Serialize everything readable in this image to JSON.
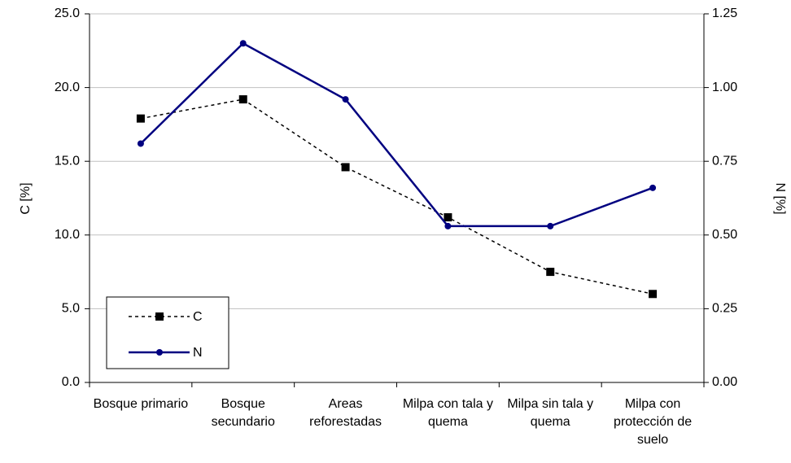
{
  "chart_data": {
    "type": "line",
    "categories": [
      "Bosque primario",
      "Bosque secundario",
      "Areas reforestadas",
      "Milpa con tala y quema",
      "Milpa sin tala y quema",
      "Milpa con protección de suelo"
    ],
    "y_label": "C [%]",
    "y2_label": "N [%]",
    "ylim": [
      0,
      25
    ],
    "yticks": [
      {
        "value": 0,
        "label": "0.0"
      },
      {
        "value": 5,
        "label": "5.0"
      },
      {
        "value": 10,
        "label": "10.0"
      },
      {
        "value": 15,
        "label": "15.0"
      },
      {
        "value": 20,
        "label": "20.0"
      },
      {
        "value": 25,
        "label": "25.0"
      }
    ],
    "y2lim": [
      0,
      1.25
    ],
    "y2ticks": [
      {
        "value": 0,
        "label": "0.00"
      },
      0.25,
      {
        "value": 0.5,
        "label": "0.50"
      },
      0.75,
      {
        "value": 1,
        "label": "1.00"
      },
      1.25
    ],
    "grid": true,
    "legend": "lower left",
    "series": [
      {
        "name": "C",
        "color": "#000000",
        "dashed": true,
        "marker": "square",
        "values": [
          17.9,
          19.2,
          14.6,
          11.2,
          7.5,
          6.0
        ]
      },
      {
        "name": "N",
        "color": "#000080",
        "dashed": false,
        "marker": "circle",
        "axis": "y2",
        "values": [
          0.81,
          1.15,
          0.96,
          0.53,
          0.53,
          0.66
        ]
      }
    ]
  }
}
